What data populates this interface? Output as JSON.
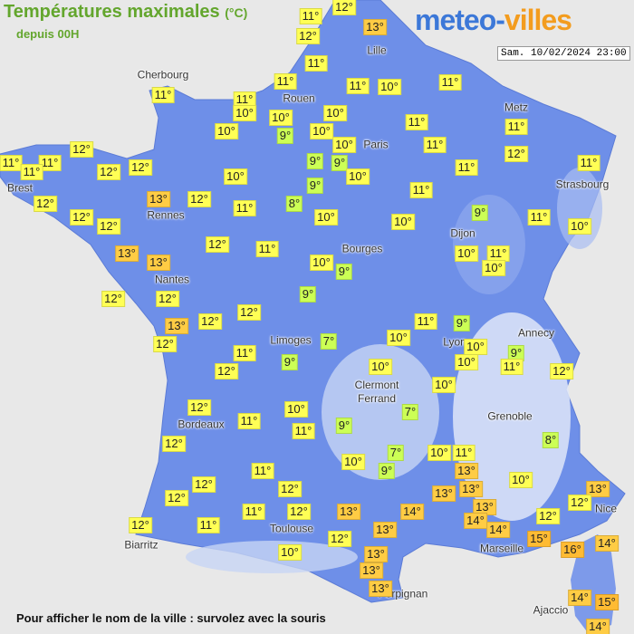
{
  "header": {
    "title": "Températures maximales",
    "unit": "(°C)",
    "subtitle": "depuis 00H"
  },
  "logo": {
    "part1": "meteo-",
    "part2": "villes"
  },
  "timestamp": "Sam. 10/02/2024 23:00",
  "cities": [
    "Cherbourg",
    "Rouen",
    "Lille",
    "Metz",
    "Paris",
    "Strasbourg",
    "Brest",
    "Rennes",
    "Dijon",
    "Bourges",
    "Nantes",
    "Annecy",
    "Limoges",
    "Lyon",
    "Clermont Ferrand",
    "Grenoble",
    "Bordeaux",
    "Nice",
    "Toulouse",
    "Biarritz",
    "Marseille",
    "Perpignan",
    "Ajaccio"
  ],
  "temperatures": [
    "11°",
    "12°",
    "13°",
    "12°",
    "11°",
    "11°",
    "11°",
    "10°",
    "11°",
    "11°",
    "11°",
    "10°",
    "10°",
    "10°",
    "9°",
    "10°",
    "11°",
    "11°",
    "10°",
    "10°",
    "11°",
    "12°",
    "12°",
    "11°",
    "11°",
    "11°",
    "12°",
    "12°",
    "9°",
    "9°",
    "10°",
    "11°",
    "11°",
    "10°",
    "9°",
    "11°",
    "12°",
    "13°",
    "12°",
    "11°",
    "8°",
    "12°",
    "12°",
    "10°",
    "10°",
    "9°",
    "11°",
    "10°",
    "12°",
    "11°",
    "13°",
    "13°",
    "10°",
    "9°",
    "10°",
    "11°",
    "10°",
    "12°",
    "12°",
    "9°",
    "12°",
    "13°",
    "12°",
    "11°",
    "9°",
    "12°",
    "7°",
    "10°",
    "10°",
    "9°",
    "11°",
    "10°",
    "11°",
    "12°",
    "9°",
    "12°",
    "10°",
    "10°",
    "12°",
    "10°",
    "7°",
    "11°",
    "9°",
    "11°",
    "8°",
    "12°",
    "7°",
    "10°",
    "11°",
    "10°",
    "9°",
    "13°",
    "11°",
    "10°",
    "12°",
    "12°",
    "12°",
    "13°",
    "13°",
    "13°",
    "12°",
    "14°",
    "13°",
    "11°",
    "12°",
    "13°",
    "12°",
    "14°",
    "12°",
    "11°",
    "14°",
    "13°",
    "12°",
    "15°",
    "16°",
    "14°",
    "10°",
    "13°",
    "13°",
    "13°",
    "14°",
    "15°",
    "14°"
  ],
  "footer": "Pour afficher le nom de la ville : survolez avec la souris"
}
